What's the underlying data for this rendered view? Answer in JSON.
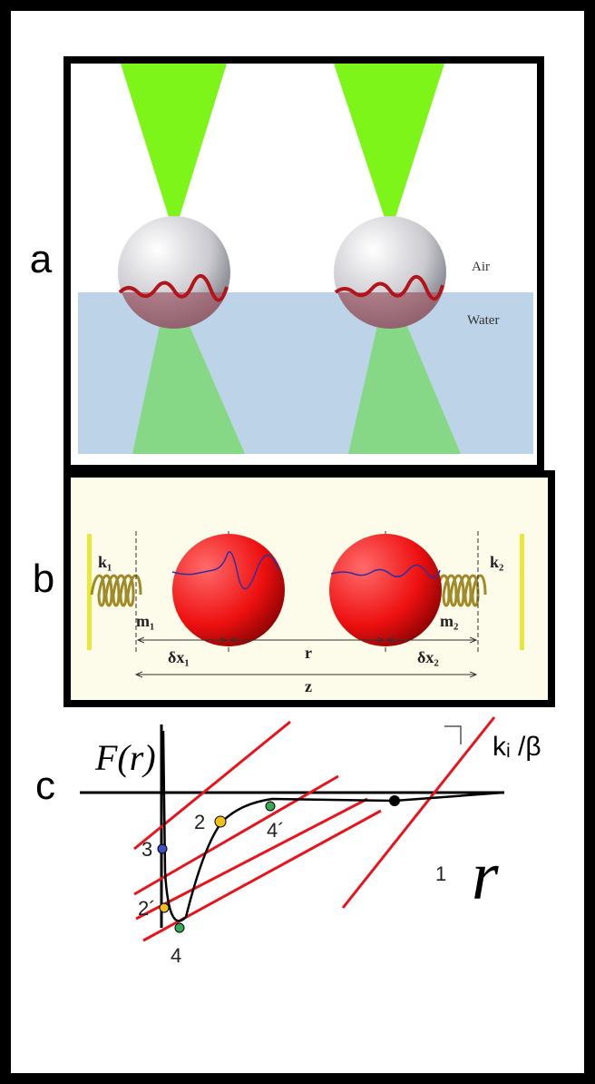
{
  "panel_a": {
    "label": "a",
    "air": "Air",
    "water": "Water"
  },
  "panel_b": {
    "label": "b",
    "k1": "k₁",
    "m1": "m₁",
    "k2": "k₂",
    "m2": "m₂",
    "dx1": "δx₁",
    "r": "r",
    "dx2": "δx₂",
    "z": "z"
  },
  "panel_c": {
    "label": "c",
    "y_axis": "F(r)",
    "slope": "kᵢ /β",
    "x_axis": "r",
    "points": [
      "1",
      "2",
      "2´",
      "3",
      "4",
      "4´"
    ]
  }
}
